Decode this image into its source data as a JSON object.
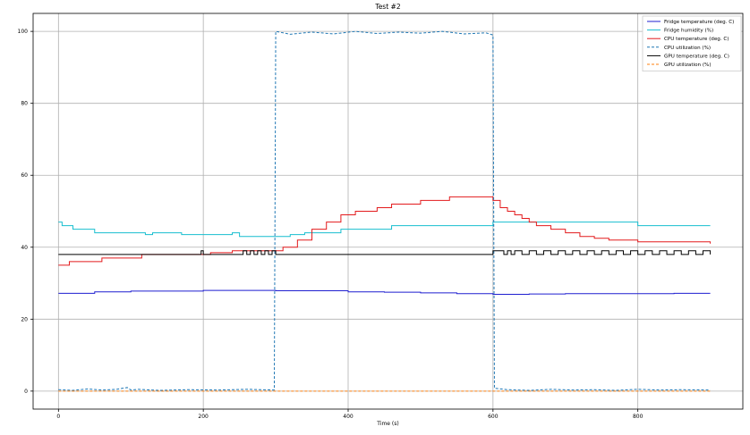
{
  "chart_data": {
    "type": "line",
    "title": "Test #2",
    "xlabel": "Time (s)",
    "ylabel": "",
    "xlim": [
      -35,
      945
    ],
    "ylim": [
      -5,
      105
    ],
    "xticks": [
      0,
      200,
      400,
      600,
      800
    ],
    "yticks": [
      0,
      20,
      40,
      60,
      80,
      100
    ],
    "grid": true,
    "legend_position": "top-right",
    "series": [
      {
        "name": "Fridge temperature (deg. C)",
        "color": "#1f1fd0",
        "style": "solid",
        "x": [
          0,
          50,
          100,
          150,
          200,
          250,
          300,
          350,
          400,
          450,
          500,
          550,
          600,
          650,
          700,
          750,
          800,
          850,
          900
        ],
        "y": [
          27.2,
          27.6,
          27.8,
          27.8,
          28.0,
          28.0,
          27.9,
          27.9,
          27.6,
          27.5,
          27.3,
          27.1,
          26.9,
          27.0,
          27.1,
          27.1,
          27.1,
          27.2,
          27.2
        ]
      },
      {
        "name": "Fridge humidity (%)",
        "color": "#17becf",
        "style": "solid",
        "x": [
          0,
          5,
          20,
          45,
          50,
          55,
          110,
          120,
          130,
          160,
          170,
          240,
          250,
          300,
          320,
          340,
          390,
          460,
          600,
          700,
          800,
          900
        ],
        "y": [
          47,
          46,
          45,
          45,
          44,
          44,
          44,
          43.5,
          44,
          44,
          43.5,
          44,
          43,
          43,
          43.5,
          44,
          45,
          46,
          47,
          47,
          46,
          46
        ]
      },
      {
        "name": "CPU temperature (deg. C)",
        "color": "#e31a1c",
        "style": "solid",
        "x": [
          0,
          15,
          45,
          60,
          110,
          115,
          200,
          210,
          240,
          300,
          310,
          330,
          350,
          370,
          390,
          410,
          440,
          460,
          480,
          500,
          520,
          540,
          560,
          590,
          600,
          610,
          620,
          630,
          640,
          650,
          660,
          680,
          700,
          720,
          740,
          760,
          800,
          900
        ],
        "y": [
          35,
          36,
          36,
          37,
          37,
          38,
          38,
          38.5,
          39,
          39,
          40,
          42,
          45,
          47,
          49,
          50,
          51,
          52,
          52,
          53,
          53,
          54,
          54,
          54,
          53,
          51,
          50,
          49,
          48,
          47,
          46,
          45,
          44,
          43,
          42.5,
          42,
          41.5,
          41
        ]
      },
      {
        "name": "CPU utilization (%)",
        "color": "#1f77b4",
        "style": "dashed",
        "x": [
          0,
          20,
          40,
          60,
          80,
          95,
          100,
          110,
          140,
          180,
          220,
          260,
          298,
          300,
          320,
          350,
          380,
          410,
          440,
          470,
          500,
          530,
          560,
          590,
          600,
          602,
          620,
          650,
          680,
          710,
          740,
          770,
          800,
          830,
          860,
          900
        ],
        "y": [
          0.4,
          0.2,
          0.6,
          0.3,
          0.5,
          1.0,
          0.3,
          0.5,
          0.2,
          0.4,
          0.3,
          0.5,
          0.3,
          100,
          99.2,
          99.8,
          99.3,
          100,
          99.4,
          99.8,
          99.5,
          100,
          99.3,
          99.6,
          99.0,
          0.8,
          0.4,
          0.2,
          0.5,
          0.3,
          0.4,
          0.2,
          0.5,
          0.3,
          0.4,
          0.3
        ]
      },
      {
        "name": "GPU temperature (deg. C)",
        "color": "#000000",
        "style": "solid",
        "x": [
          0,
          195,
          197,
          200,
          250,
          255,
          260,
          265,
          270,
          275,
          280,
          285,
          290,
          295,
          300,
          598,
          600,
          610,
          615,
          620,
          625,
          630,
          640,
          650,
          660,
          670,
          680,
          690,
          700,
          710,
          720,
          730,
          740,
          750,
          760,
          770,
          780,
          790,
          800,
          810,
          820,
          830,
          840,
          850,
          860,
          870,
          880,
          890,
          900
        ],
        "y": [
          38,
          38,
          39,
          38,
          38,
          39,
          38,
          39,
          38,
          39,
          38,
          39,
          38,
          39,
          38,
          38,
          39,
          39,
          38,
          39,
          38,
          39,
          38,
          39,
          38,
          39,
          38,
          39,
          38,
          39,
          38,
          39,
          38,
          39,
          38,
          39,
          38,
          39,
          38,
          39,
          38,
          39,
          38,
          39,
          38,
          39,
          38,
          39,
          38
        ]
      },
      {
        "name": "GPU utilization (%)",
        "color": "#ff7f0e",
        "style": "dashed",
        "x": [
          0,
          900
        ],
        "y": [
          0,
          0
        ]
      }
    ]
  }
}
